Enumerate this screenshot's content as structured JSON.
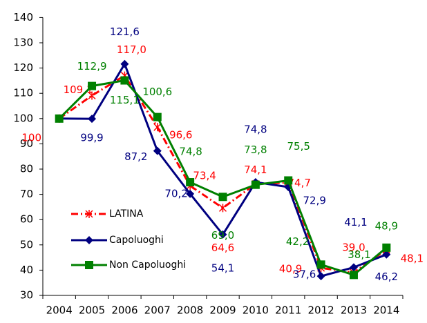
{
  "chart_data": {
    "type": "line",
    "categories": [
      "2004",
      "2005",
      "2006",
      "2007",
      "2008",
      "2009",
      "2010",
      "2011",
      "2012",
      "2013",
      "2014"
    ],
    "ylim": [
      30,
      140
    ],
    "yticks": [
      30,
      40,
      50,
      60,
      70,
      80,
      90,
      100,
      110,
      120,
      130,
      140
    ],
    "grid": false,
    "legend": "lower left",
    "series": [
      {
        "name": "LATINA",
        "color": "#ff0000",
        "marker": "star",
        "dash": "dashdot",
        "values": [
          100,
          109.1,
          117.0,
          96.6,
          73.4,
          64.6,
          74.1,
          74.7,
          40.9,
          39.0,
          48.1
        ],
        "value_labels": [
          "100",
          "109,1",
          "117,0",
          "96,6",
          "73,4",
          "64,6",
          "74,1",
          "74,7",
          "40,9",
          "39,0",
          "48,1"
        ]
      },
      {
        "name": "Capoluoghi",
        "color": "#000080",
        "marker": "diamond",
        "dash": "solid",
        "values": [
          100,
          99.9,
          121.6,
          87.2,
          70.2,
          54.1,
          74.8,
          72.9,
          37.6,
          41.1,
          46.2
        ],
        "value_labels": [
          null,
          "99,9",
          "121,6",
          "87,2",
          "70,2",
          "54,1",
          "74,8",
          "72,9",
          "37,6",
          "41,1",
          "46,2"
        ]
      },
      {
        "name": "Non Capoluoghi",
        "color": "#008000",
        "marker": "square",
        "dash": "solid",
        "values": [
          100,
          112.9,
          115.1,
          100.6,
          74.8,
          69.0,
          73.8,
          75.5,
          42.2,
          38.1,
          48.9
        ],
        "value_labels": [
          null,
          "112,9",
          "115,1",
          "100,6",
          "74,8",
          "69,0",
          "73,8",
          "75,5",
          "42,2",
          "38,1",
          "48,9"
        ]
      }
    ]
  }
}
